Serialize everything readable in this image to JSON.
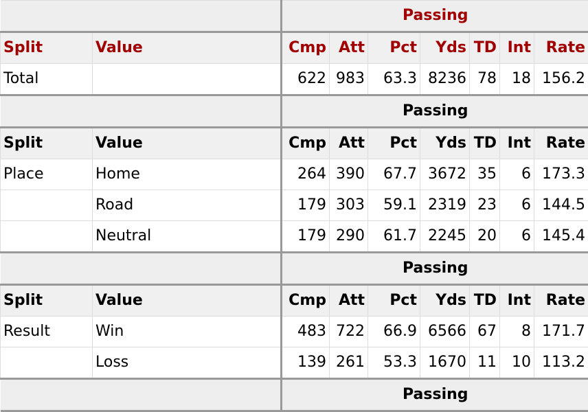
{
  "columns": [
    "Split",
    "Value",
    "Cmp",
    "Att",
    "Pct",
    "Yds",
    "TD",
    "Int",
    "Rate"
  ],
  "group_label": "Passing",
  "sections": [
    {
      "header_color": "red",
      "rows": [
        [
          "Total",
          "",
          "622",
          "983",
          "63.3",
          "8236",
          "78",
          "18",
          "156.2"
        ]
      ]
    },
    {
      "header_color": "black",
      "rows": [
        [
          "Place",
          "Home",
          "264",
          "390",
          "67.7",
          "3672",
          "35",
          "6",
          "173.3"
        ],
        [
          "",
          "Road",
          "179",
          "303",
          "59.1",
          "2319",
          "23",
          "6",
          "144.5"
        ],
        [
          "",
          "Neutral",
          "179",
          "290",
          "61.7",
          "2245",
          "20",
          "6",
          "145.4"
        ]
      ]
    },
    {
      "header_color": "black",
      "rows": [
        [
          "Result",
          "Win",
          "483",
          "722",
          "66.9",
          "6566",
          "67",
          "8",
          "171.7"
        ],
        [
          "",
          "Loss",
          "139",
          "261",
          "53.3",
          "1670",
          "11",
          "10",
          "113.2"
        ]
      ]
    },
    {
      "header_color": "black",
      "rows": []
    }
  ]
}
